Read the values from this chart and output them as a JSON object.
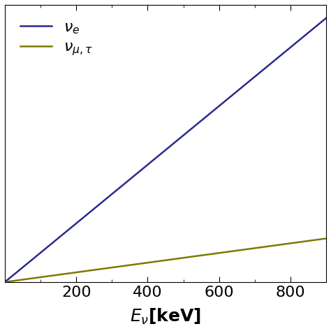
{
  "x_min": 0,
  "x_max": 900,
  "x_label": "$E_{\\nu}$[keV]",
  "tick_label_fontsize": 16,
  "axis_label_fontsize": 18,
  "legend_fontsize": 16,
  "line_color_nue": "#2b2b8a",
  "line_color_numu": "#7a7a00",
  "line_width": 1.8,
  "legend_nue": "$\\boldsymbol{\\nu_e}$",
  "legend_numu": "$\\boldsymbol{\\nu_{\\mu,\\tau}}$",
  "background_color": "#ffffff",
  "nue_scale": 1.0,
  "numu_scale": 0.165,
  "tick_marks_only_bottom": true
}
